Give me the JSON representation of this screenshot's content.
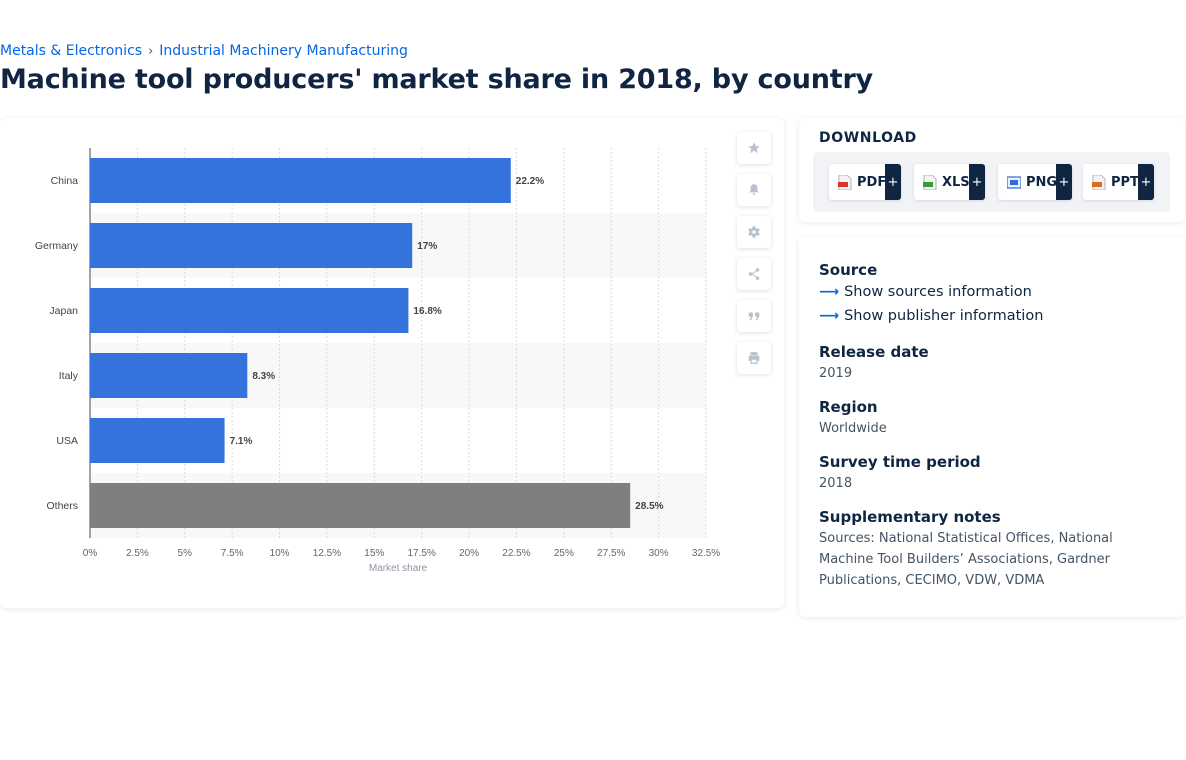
{
  "breadcrumb": {
    "items": [
      "Metals & Electronics",
      "Industrial Machinery Manufacturing"
    ],
    "separator": "›"
  },
  "page_title": "Machine tool producers' market share in 2018, by country",
  "chart_data": {
    "type": "bar",
    "orientation": "horizontal",
    "categories": [
      "China",
      "Germany",
      "Japan",
      "Italy",
      "USA",
      "Others"
    ],
    "values": [
      22.2,
      17,
      16.8,
      8.3,
      7.1,
      28.5
    ],
    "data_labels": [
      "22.2%",
      "17%",
      "16.8%",
      "8.3%",
      "7.1%",
      "28.5%"
    ],
    "bar_colors": [
      "#3573dc",
      "#3573dc",
      "#3573dc",
      "#3573dc",
      "#3573dc",
      "#7f7f7f"
    ],
    "xlabel": "Market share",
    "ylabel": "",
    "xlim": [
      0,
      32.5
    ],
    "x_ticks": [
      0,
      2.5,
      5,
      7.5,
      10,
      12.5,
      15,
      17.5,
      20,
      22.5,
      25,
      27.5,
      30,
      32.5
    ],
    "x_tick_labels": [
      "0%",
      "2.5%",
      "5%",
      "7.5%",
      "10%",
      "12.5%",
      "15%",
      "17.5%",
      "20%",
      "22.5%",
      "25%",
      "27.5%",
      "30%",
      "32.5%"
    ],
    "grid": "vertical dashed",
    "legend": "none"
  },
  "tools": [
    "star-icon",
    "bell-icon",
    "gear-icon",
    "share-icon",
    "quote-icon",
    "print-icon"
  ],
  "download": {
    "title": "DOWNLOAD",
    "formats": [
      {
        "label": "PDF",
        "plus": "+",
        "icon": "pdf-file-icon",
        "color": "#d9352c"
      },
      {
        "label": "XLS",
        "plus": "+",
        "icon": "xls-file-icon",
        "color": "#3d9b35"
      },
      {
        "label": "PNG",
        "plus": "+",
        "icon": "png-file-icon",
        "color": "#2c6bd9"
      },
      {
        "label": "PPT",
        "plus": "+",
        "icon": "ppt-file-icon",
        "color": "#e06a1b"
      }
    ]
  },
  "info": {
    "source_heading": "Source",
    "show_sources": "Show sources information",
    "show_publisher": "Show publisher information",
    "release_heading": "Release date",
    "release_value": "2019",
    "region_heading": "Region",
    "region_value": "Worldwide",
    "survey_heading": "Survey time period",
    "survey_value": "2018",
    "notes_heading": "Supplementary notes",
    "notes_value": "Sources: National Statistical Offices, National Machine Tool Builders’ Associations, Gardner Publications, CECIMO, VDW, VDMA"
  },
  "colors": {
    "accent": "#0666e5",
    "navy": "#0f2542",
    "bar_primary": "#3573dc",
    "bar_other": "#7f7f7f"
  }
}
